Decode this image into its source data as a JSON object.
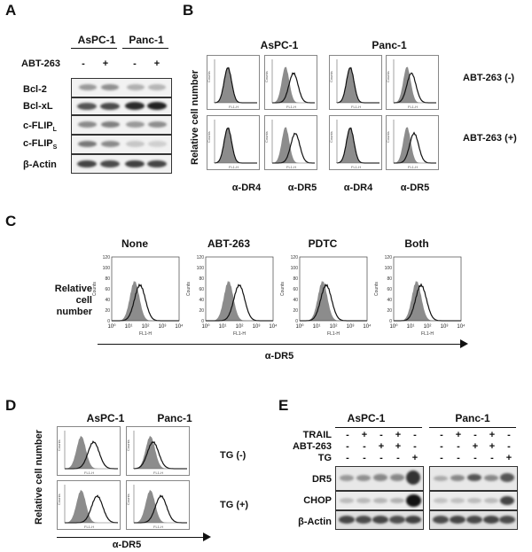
{
  "panels": {
    "A": {
      "letter": "A",
      "cell_lines": [
        "AsPC-1",
        "Panc-1"
      ],
      "treatment_label": "ABT-263",
      "treatment_signs": [
        "-",
        "+",
        "-",
        "+"
      ],
      "proteins": [
        {
          "label": "Bcl-2"
        },
        {
          "label": "Bcl-xL"
        },
        {
          "label": "c-FLIP",
          "sub": "L"
        },
        {
          "label": "c-FLIP",
          "sub": "S"
        },
        {
          "label": "β-Actin"
        }
      ]
    },
    "B": {
      "letter": "B",
      "cell_lines": [
        "AsPC-1",
        "Panc-1"
      ],
      "ylabel": "Relative cell number",
      "row_labels": [
        "ABT-263 (-)",
        "ABT-263 (+)"
      ],
      "col_labels": [
        "α-DR4",
        "α-DR5",
        "α-DR4",
        "α-DR5"
      ]
    },
    "C": {
      "letter": "C",
      "ylabel_line1": "Relative cell",
      "ylabel_line2": "number",
      "titles": [
        "None",
        "ABT-263",
        "PDTC",
        "Both"
      ],
      "xlabel": "α-DR5",
      "axis_y_name": "Counts",
      "axis_x_name": "FL1-H",
      "y_ticks": [
        "0",
        "20",
        "40",
        "60",
        "80",
        "100",
        "120"
      ],
      "x_ticks": [
        "10⁰",
        "10¹",
        "10²",
        "10³",
        "10⁴"
      ]
    },
    "D": {
      "letter": "D",
      "cell_lines": [
        "AsPC-1",
        "Panc-1"
      ],
      "ylabel": "Relative cell number",
      "row_labels": [
        "TG (-)",
        "TG (+)"
      ],
      "xlabel": "α-DR5"
    },
    "E": {
      "letter": "E",
      "cell_lines": [
        "AsPC-1",
        "Panc-1"
      ],
      "conditions": [
        {
          "label": "TRAIL",
          "signs": [
            "-",
            "+",
            "-",
            "+",
            "-",
            "-",
            "+",
            "-",
            "+",
            "-"
          ]
        },
        {
          "label": "ABT-263",
          "signs": [
            "-",
            "-",
            "+",
            "+",
            "-",
            "-",
            "-",
            "+",
            "+",
            "-"
          ]
        },
        {
          "label": "TG",
          "signs": [
            "-",
            "-",
            "-",
            "-",
            "+",
            "-",
            "-",
            "-",
            "-",
            "+"
          ]
        }
      ],
      "proteins": [
        "DR5",
        "CHOP",
        "β-Actin"
      ]
    }
  },
  "flow_axis": {
    "counts": "Counts",
    "fl1h": "FL1-H"
  }
}
